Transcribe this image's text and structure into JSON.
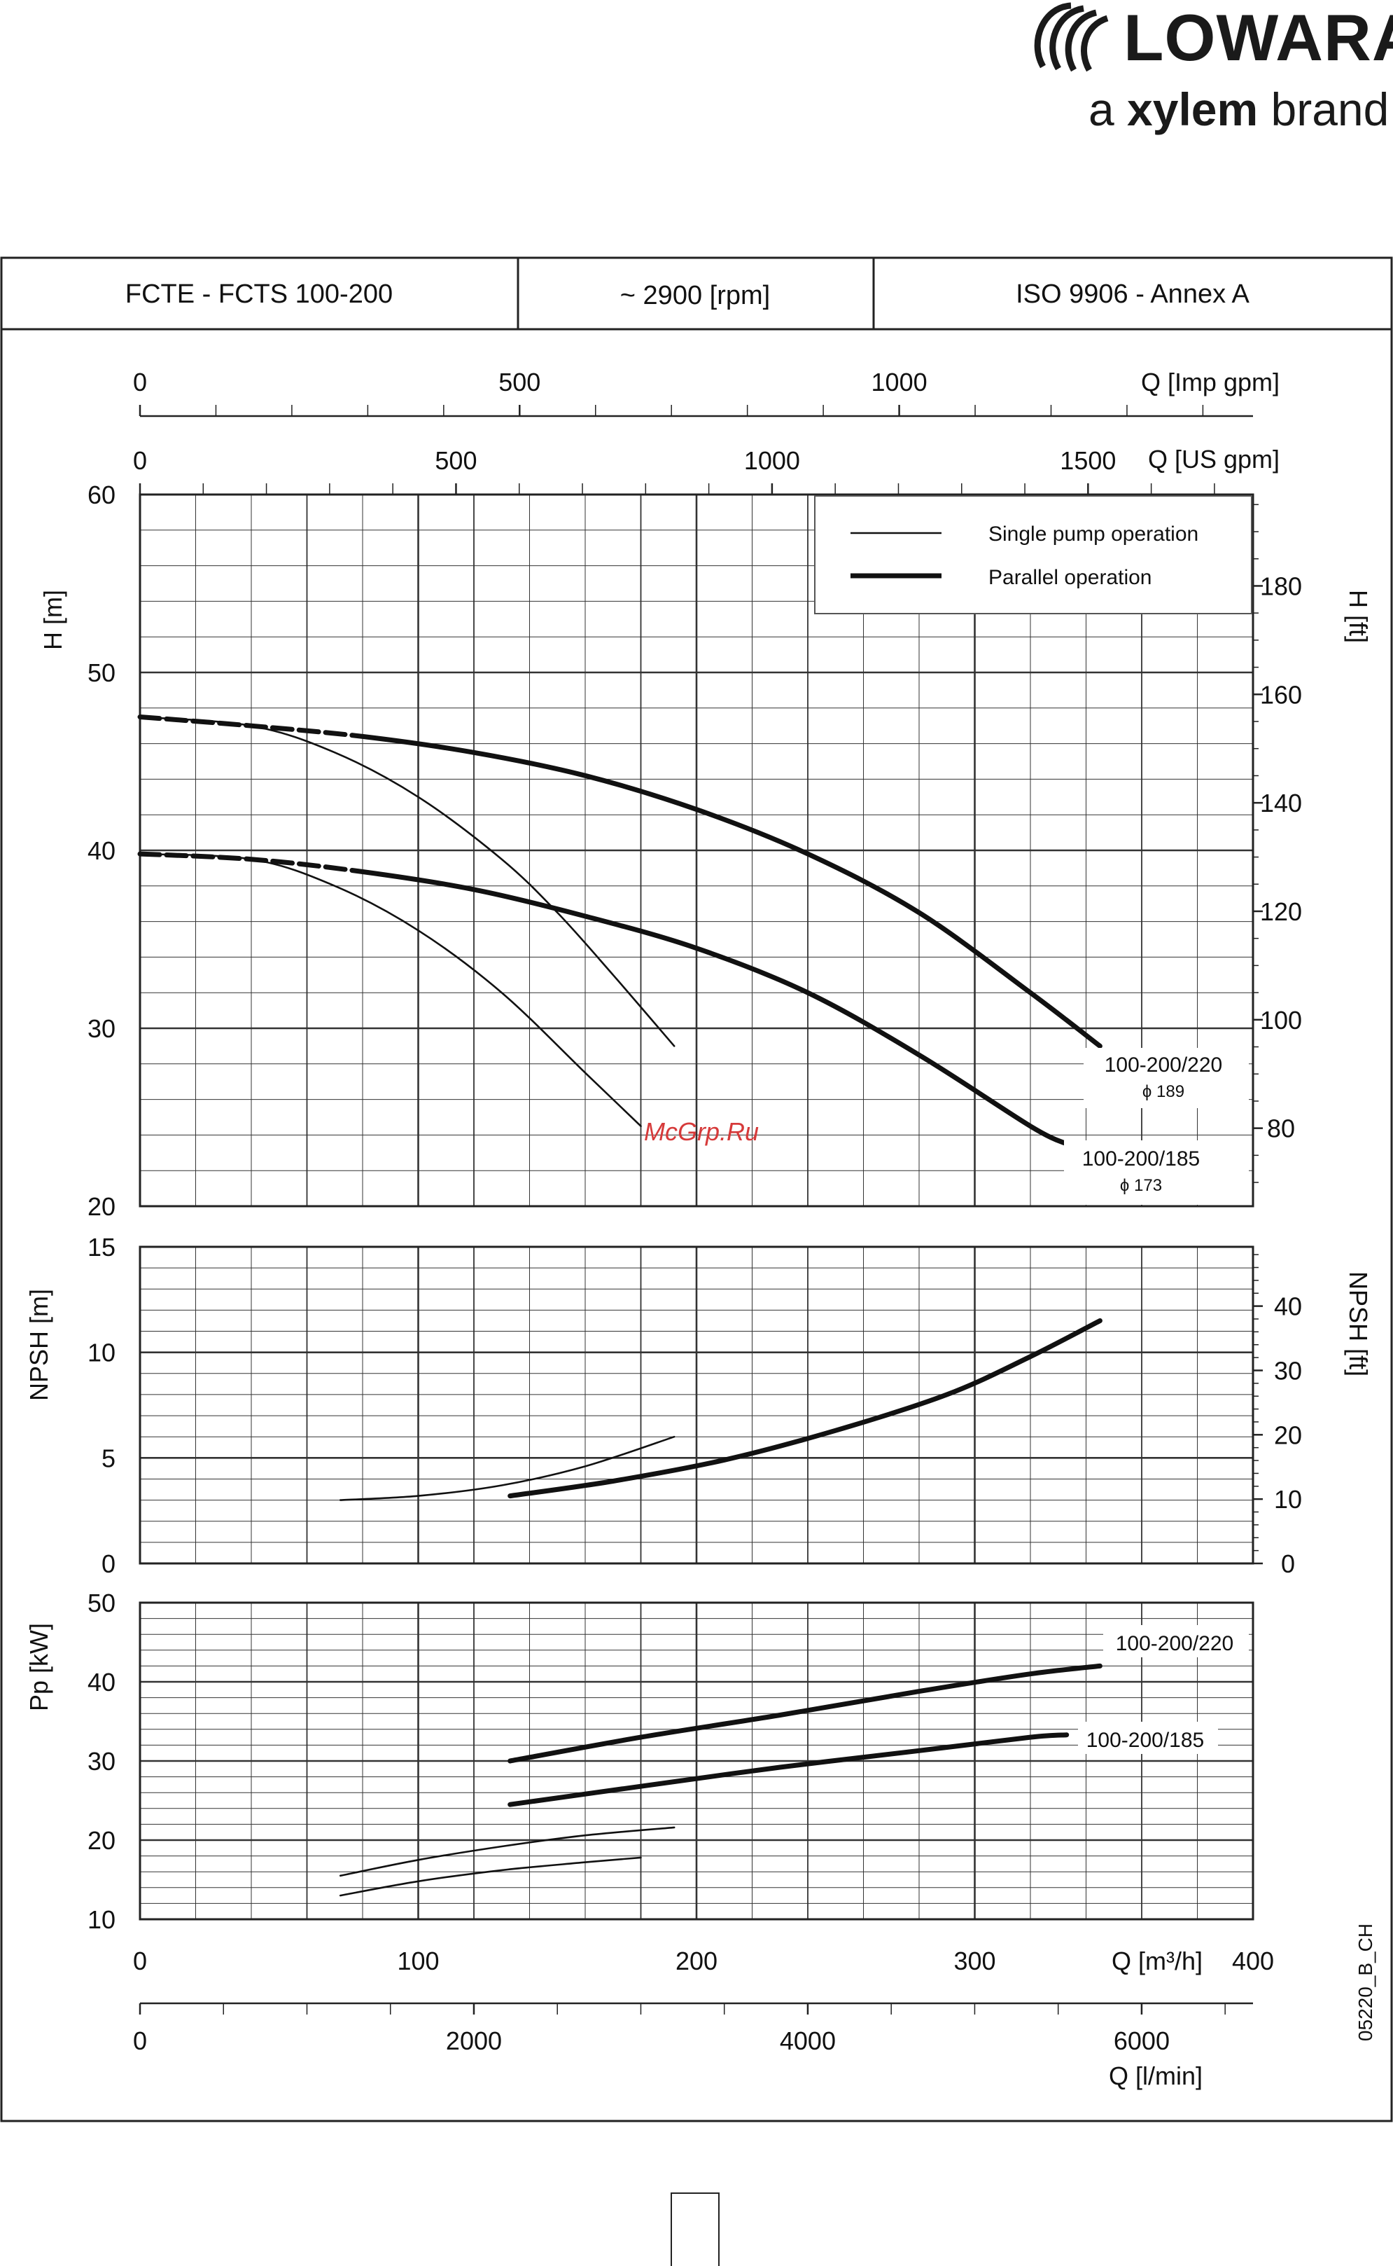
{
  "brand": {
    "logo_text": "LOWARA",
    "tagline_prefix": "a ",
    "tagline_bold": "xylem",
    "tagline_suffix": " brand"
  },
  "header": {
    "model": "FCTE - FCTS     100-200",
    "speed": "~ 2900 [rpm]",
    "standard": "ISO 9906 - Annex A"
  },
  "axes": {
    "imp_gpm": {
      "label": "Q [Imp gpm]",
      "ticks": [
        0,
        500,
        1000
      ],
      "max": 1466
    },
    "us_gpm": {
      "label": "Q [US gpm]",
      "ticks": [
        0,
        500,
        1000,
        1500
      ],
      "max": 1761
    },
    "q_m3h": {
      "label": "Q [m³/h]",
      "ticks": [
        0,
        100,
        200,
        300,
        400
      ],
      "range": [
        0,
        400
      ]
    },
    "q_lmin": {
      "label": "Q [l/min]",
      "ticks": [
        0,
        2000,
        4000,
        6000
      ],
      "max": 6667
    },
    "h_m": {
      "label": "H [m]",
      "ticks": [
        20,
        30,
        40,
        50,
        60
      ],
      "range": [
        20,
        60
      ]
    },
    "h_ft": {
      "label": "H [ft]",
      "ticks": [
        80,
        100,
        120,
        140,
        160,
        180
      ]
    },
    "npsh_m": {
      "label": "NPSH [m]",
      "ticks": [
        0,
        5,
        10,
        15
      ],
      "range": [
        0,
        15
      ]
    },
    "npsh_ft": {
      "label": "NPSH [ft]",
      "ticks": [
        0,
        10,
        20,
        30,
        40
      ]
    },
    "p_kw": {
      "label": "Pp [kW]",
      "ticks": [
        10,
        20,
        30,
        40,
        50
      ],
      "range": [
        10,
        50
      ]
    }
  },
  "legend": {
    "position": "top-right",
    "single": "Single pump operation",
    "parallel": "Parallel operation"
  },
  "labels": {
    "curve_220": "100-200/220",
    "dia_220": "ϕ 189",
    "curve_185": "100-200/185",
    "dia_185": "ϕ 173",
    "watermark": "McGrp.Ru",
    "code": "05220_B_CH"
  },
  "chart_data": [
    {
      "type": "line",
      "title": "H [m]",
      "xlabel": "Q [m³/h]",
      "ylabel": "H [m]",
      "xlim": [
        0,
        400
      ],
      "ylim": [
        20,
        60
      ],
      "grid": true,
      "series": [
        {
          "name": "Single pump operation",
          "curve": "100-200/220",
          "style": "thin",
          "x": [
            0,
            40,
            70,
            100,
            130,
            150,
            170,
            192
          ],
          "y": [
            47.5,
            47.0,
            45.5,
            43.0,
            39.5,
            36.5,
            33.0,
            29.0
          ]
        },
        {
          "name": "Parallel operation",
          "curve": "100-200/220",
          "style": "thick",
          "x": [
            0,
            40,
            80,
            120,
            160,
            200,
            240,
            280,
            320,
            345
          ],
          "y": [
            47.5,
            47.0,
            46.4,
            45.5,
            44.2,
            42.3,
            39.8,
            36.5,
            32.0,
            29.0
          ]
        },
        {
          "name": "Single pump operation",
          "curve": "100-200/185",
          "style": "thin",
          "x": [
            0,
            40,
            70,
            100,
            130,
            160,
            180
          ],
          "y": [
            39.8,
            39.5,
            38.0,
            35.5,
            32.0,
            27.5,
            24.5
          ]
        },
        {
          "name": "Parallel operation",
          "curve": "100-200/185",
          "style": "thick",
          "x": [
            0,
            40,
            80,
            120,
            160,
            200,
            240,
            280,
            320,
            333
          ],
          "y": [
            39.8,
            39.5,
            38.8,
            37.8,
            36.3,
            34.5,
            32.0,
            28.5,
            24.5,
            23.5
          ]
        }
      ]
    },
    {
      "type": "line",
      "title": "NPSH [m]",
      "xlabel": "Q [m³/h]",
      "ylabel": "NPSH [m]",
      "xlim": [
        0,
        400
      ],
      "ylim": [
        0,
        15
      ],
      "grid": true,
      "series": [
        {
          "name": "Single pump operation",
          "style": "thin",
          "x": [
            72,
            100,
            130,
            160,
            192
          ],
          "y": [
            3.0,
            3.2,
            3.7,
            4.6,
            6.0
          ]
        },
        {
          "name": "Parallel operation",
          "style": "thick",
          "x": [
            133,
            170,
            210,
            250,
            290,
            320,
            345
          ],
          "y": [
            3.2,
            3.9,
            4.9,
            6.3,
            8.0,
            9.8,
            11.5
          ]
        }
      ]
    },
    {
      "type": "line",
      "title": "Pp [kW]",
      "xlabel": "Q [m³/h]",
      "ylabel": "Pp [kW]",
      "xlim": [
        0,
        400
      ],
      "ylim": [
        10,
        50
      ],
      "grid": true,
      "series": [
        {
          "name": "Single pump operation",
          "curve": "100-200/220",
          "style": "thin",
          "x": [
            72,
            100,
            130,
            160,
            192
          ],
          "y": [
            15.5,
            17.5,
            19.2,
            20.6,
            21.6
          ]
        },
        {
          "name": "Single pump operation",
          "curve": "100-200/185",
          "style": "thin",
          "x": [
            72,
            100,
            130,
            160,
            180
          ],
          "y": [
            13.0,
            14.8,
            16.2,
            17.2,
            17.8
          ]
        },
        {
          "name": "Parallel operation",
          "curve": "100-200/220",
          "style": "thick",
          "x": [
            133,
            180,
            230,
            280,
            320,
            345
          ],
          "y": [
            30.0,
            33.0,
            35.8,
            38.8,
            41.0,
            42.0
          ]
        },
        {
          "name": "Parallel operation",
          "curve": "100-200/185",
          "style": "thick",
          "x": [
            133,
            180,
            230,
            280,
            320,
            333
          ],
          "y": [
            24.5,
            26.8,
            29.2,
            31.3,
            33.0,
            33.3
          ]
        }
      ]
    }
  ]
}
